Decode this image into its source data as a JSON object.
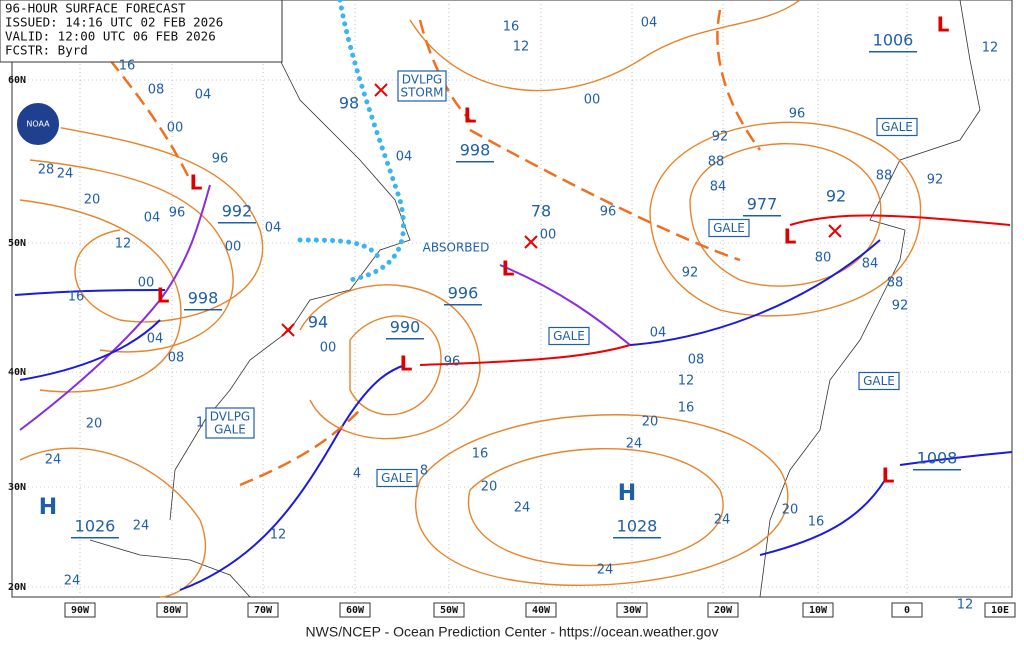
{
  "header": {
    "lines": [
      "96-HOUR SURFACE FORECAST",
      "ISSUED: 14:16 UTC 02 FEB 2026",
      "VALID: 12:00 UTC 06 FEB 2026",
      "FCSTR: Byrd"
    ]
  },
  "logo": "NOAA",
  "footer": "NWS/NCEP - Ocean Prediction Center - https://ocean.weather.gov",
  "lat_labels": [
    "60N",
    "50N",
    "40N",
    "30N",
    "20N"
  ],
  "lon_labels": [
    "90W",
    "80W",
    "70W",
    "60W",
    "50W",
    "40W",
    "30W",
    "20W",
    "10W",
    "0",
    "10E"
  ],
  "centers": [
    {
      "symbol": "H",
      "pressure": "1026"
    },
    {
      "symbol": "H",
      "pressure": "1028"
    },
    {
      "symbol": "L",
      "pressure": "992"
    },
    {
      "symbol": "L",
      "pressure": "998"
    },
    {
      "symbol": "L",
      "pressure": "998"
    },
    {
      "symbol": "L",
      "pressure": "996"
    },
    {
      "symbol": "L",
      "pressure": "990"
    },
    {
      "symbol": "L",
      "pressure": "977"
    },
    {
      "symbol": "L",
      "pressure": "1006"
    },
    {
      "symbol": "L",
      "pressure": "1008"
    }
  ],
  "pressure_labels": [
    "94",
    "78",
    "98",
    "92"
  ],
  "isobar_labels": [
    "16",
    "08",
    "04",
    "00",
    "96",
    "28",
    "24",
    "20",
    "12",
    "04",
    "96",
    "00",
    "04",
    "00",
    "16",
    "04",
    "08",
    "20",
    "24",
    "24",
    "24",
    "12",
    "4",
    "00",
    "96",
    "16",
    "20",
    "24",
    "24",
    "24",
    "20",
    "16",
    "24",
    "20",
    "16",
    "12",
    "08",
    "04",
    "96",
    "92",
    "88",
    "84",
    "92",
    "80",
    "84",
    "88",
    "92",
    "96",
    "88",
    "92",
    "12",
    "00",
    "04",
    "16",
    "12",
    "04",
    "00",
    "1",
    "12",
    "8"
  ],
  "boxes": [
    [
      "DVLPG",
      "STORM"
    ],
    [
      "DVLPG",
      "GALE"
    ],
    [
      "GALE"
    ],
    [
      "GALE"
    ],
    [
      "GALE"
    ],
    [
      "GALE"
    ],
    [
      "GALE"
    ]
  ],
  "annotations": [
    "ABSORBED"
  ]
}
